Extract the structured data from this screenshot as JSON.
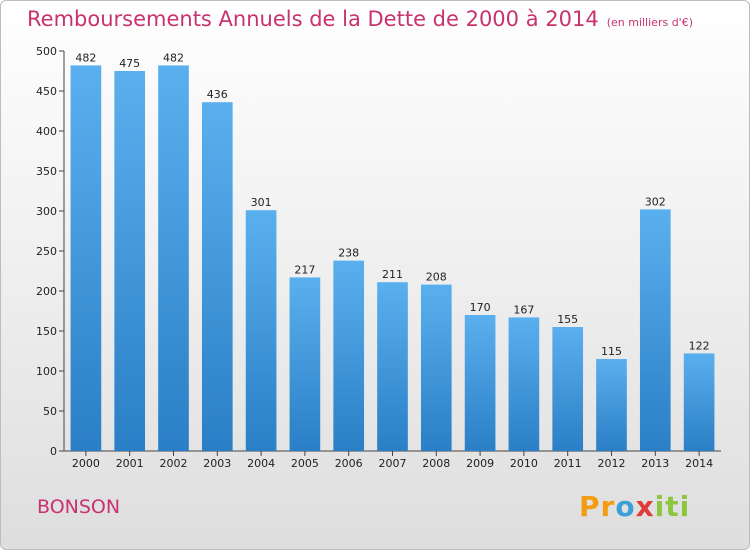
{
  "page": {
    "title": "Remboursements Annuels de la Dette de 2000 à 2014",
    "unit_note": "(en milliers d'€)",
    "location": "BONSON",
    "logo": "Proxiti"
  },
  "colors": {
    "title": "#c8326e",
    "bar_top": "#5ab0ee",
    "bar_bottom": "#2a7fc6",
    "axis": "#444444"
  },
  "chart_data": {
    "type": "bar",
    "title": "Remboursements Annuels de la Dette de 2000 à 2014",
    "subtitle": "(en milliers d'€)",
    "xlabel": "",
    "ylabel": "",
    "categories": [
      "2000",
      "2001",
      "2002",
      "2003",
      "2004",
      "2005",
      "2006",
      "2007",
      "2008",
      "2009",
      "2010",
      "2011",
      "2012",
      "2013",
      "2014"
    ],
    "values": [
      482,
      475,
      482,
      436,
      301,
      217,
      238,
      211,
      208,
      170,
      167,
      155,
      115,
      302,
      122
    ],
    "ylim": [
      0,
      500
    ],
    "yticks": [
      0,
      50,
      100,
      150,
      200,
      250,
      300,
      350,
      400,
      450,
      500
    ],
    "grid": false,
    "legend": "none"
  }
}
